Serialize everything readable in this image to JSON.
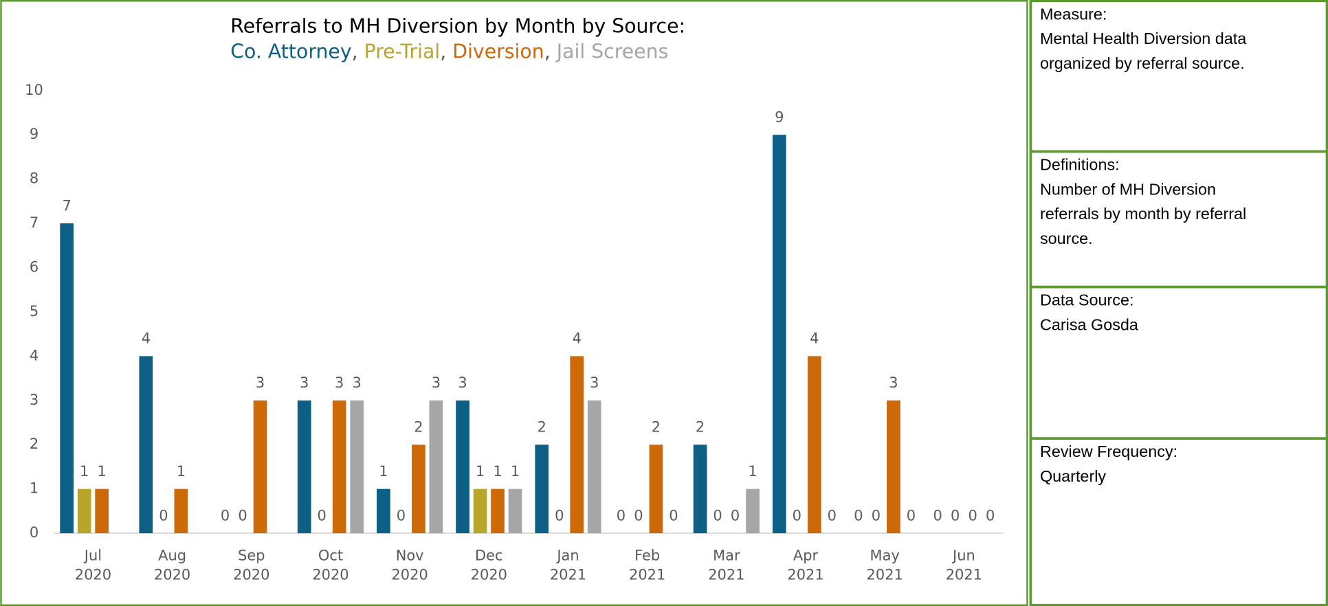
{
  "chart_data": {
    "type": "bar",
    "title": "Referrals to MH Diversion by Month by Source:",
    "subtitle_separator": ",",
    "categories": [
      [
        "Jul",
        "2020"
      ],
      [
        "Aug",
        "2020"
      ],
      [
        "Sep",
        "2020"
      ],
      [
        "Oct",
        "2020"
      ],
      [
        "Nov",
        "2020"
      ],
      [
        "Dec",
        "2020"
      ],
      [
        "Jan",
        "2021"
      ],
      [
        "Feb",
        "2021"
      ],
      [
        "Mar",
        "2021"
      ],
      [
        "Apr",
        "2021"
      ],
      [
        "May",
        "2021"
      ],
      [
        "Jun",
        "2021"
      ]
    ],
    "series": [
      {
        "name": "Co. Attorney",
        "color": "#0e5f86",
        "values": [
          7,
          4,
          0,
          3,
          1,
          3,
          2,
          0,
          2,
          9,
          0,
          0
        ]
      },
      {
        "name": "Pre-Trial",
        "color": "#b8a52a",
        "values": [
          1,
          0,
          0,
          0,
          0,
          1,
          0,
          0,
          0,
          0,
          0,
          0
        ]
      },
      {
        "name": "Diversion",
        "color": "#cc6a0a",
        "values": [
          1,
          1,
          3,
          3,
          2,
          1,
          4,
          2,
          0,
          4,
          3,
          0
        ]
      },
      {
        "name": "Jail Screens",
        "color": "#a6a6a6",
        "values": [
          null,
          null,
          null,
          3,
          3,
          1,
          3,
          0,
          1,
          0,
          0,
          0
        ]
      }
    ],
    "ylim": [
      0,
      10
    ],
    "yticks": [
      0,
      1,
      2,
      3,
      4,
      5,
      6,
      7,
      8,
      9,
      10
    ]
  },
  "panel": [
    {
      "heading": "Measure:",
      "lines": [
        "Mental Health Diversion data",
        "organized by referral source."
      ]
    },
    {
      "heading": "Definitions:",
      "lines": [
        "Number of MH Diversion",
        "referrals by month by referral",
        "source."
      ]
    },
    {
      "heading": "Data Source:",
      "lines": [
        "Carisa Gosda"
      ]
    },
    {
      "heading": "Review Frequency:",
      "lines": [
        "Quarterly"
      ]
    }
  ]
}
